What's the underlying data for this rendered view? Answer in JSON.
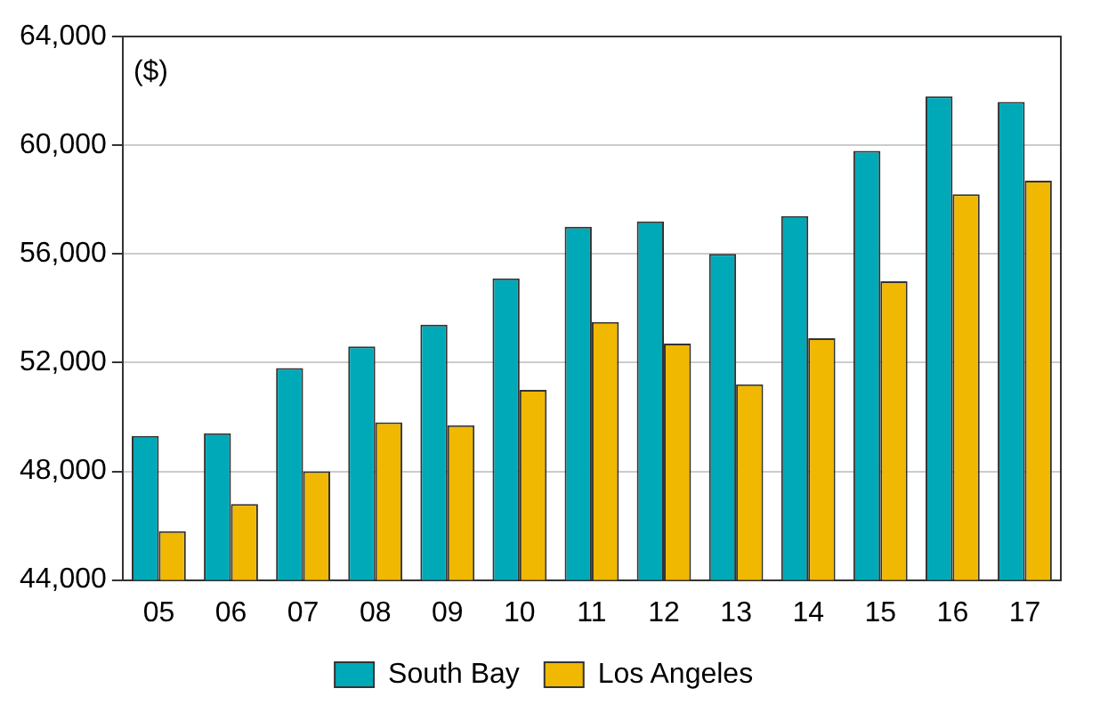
{
  "chart_data": {
    "type": "bar",
    "categories": [
      "05",
      "06",
      "07",
      "08",
      "09",
      "10",
      "11",
      "12",
      "13",
      "14",
      "15",
      "16",
      "17"
    ],
    "series": [
      {
        "name": "South Bay",
        "color": "#00a9b8",
        "values": [
          49300,
          49400,
          51800,
          52600,
          53400,
          55100,
          57000,
          57200,
          56000,
          57400,
          59800,
          61800,
          61600
        ]
      },
      {
        "name": "Los Angeles",
        "color": "#f0b800",
        "values": [
          45800,
          46800,
          48000,
          49800,
          49700,
          51000,
          53500,
          52700,
          51200,
          52900,
          55000,
          58200,
          58700
        ]
      }
    ],
    "ylim": [
      44000,
      64000
    ],
    "yticks": [
      {
        "value": 44000,
        "label": "44,000"
      },
      {
        "value": 48000,
        "label": "48,000"
      },
      {
        "value": 52000,
        "label": "52,000"
      },
      {
        "value": 56000,
        "label": "56,000"
      },
      {
        "value": 60000,
        "label": "60,000"
      },
      {
        "value": 64000,
        "label": "64,000"
      }
    ],
    "annotations": [
      "($)"
    ],
    "grid": "y",
    "legend": "bottom"
  }
}
